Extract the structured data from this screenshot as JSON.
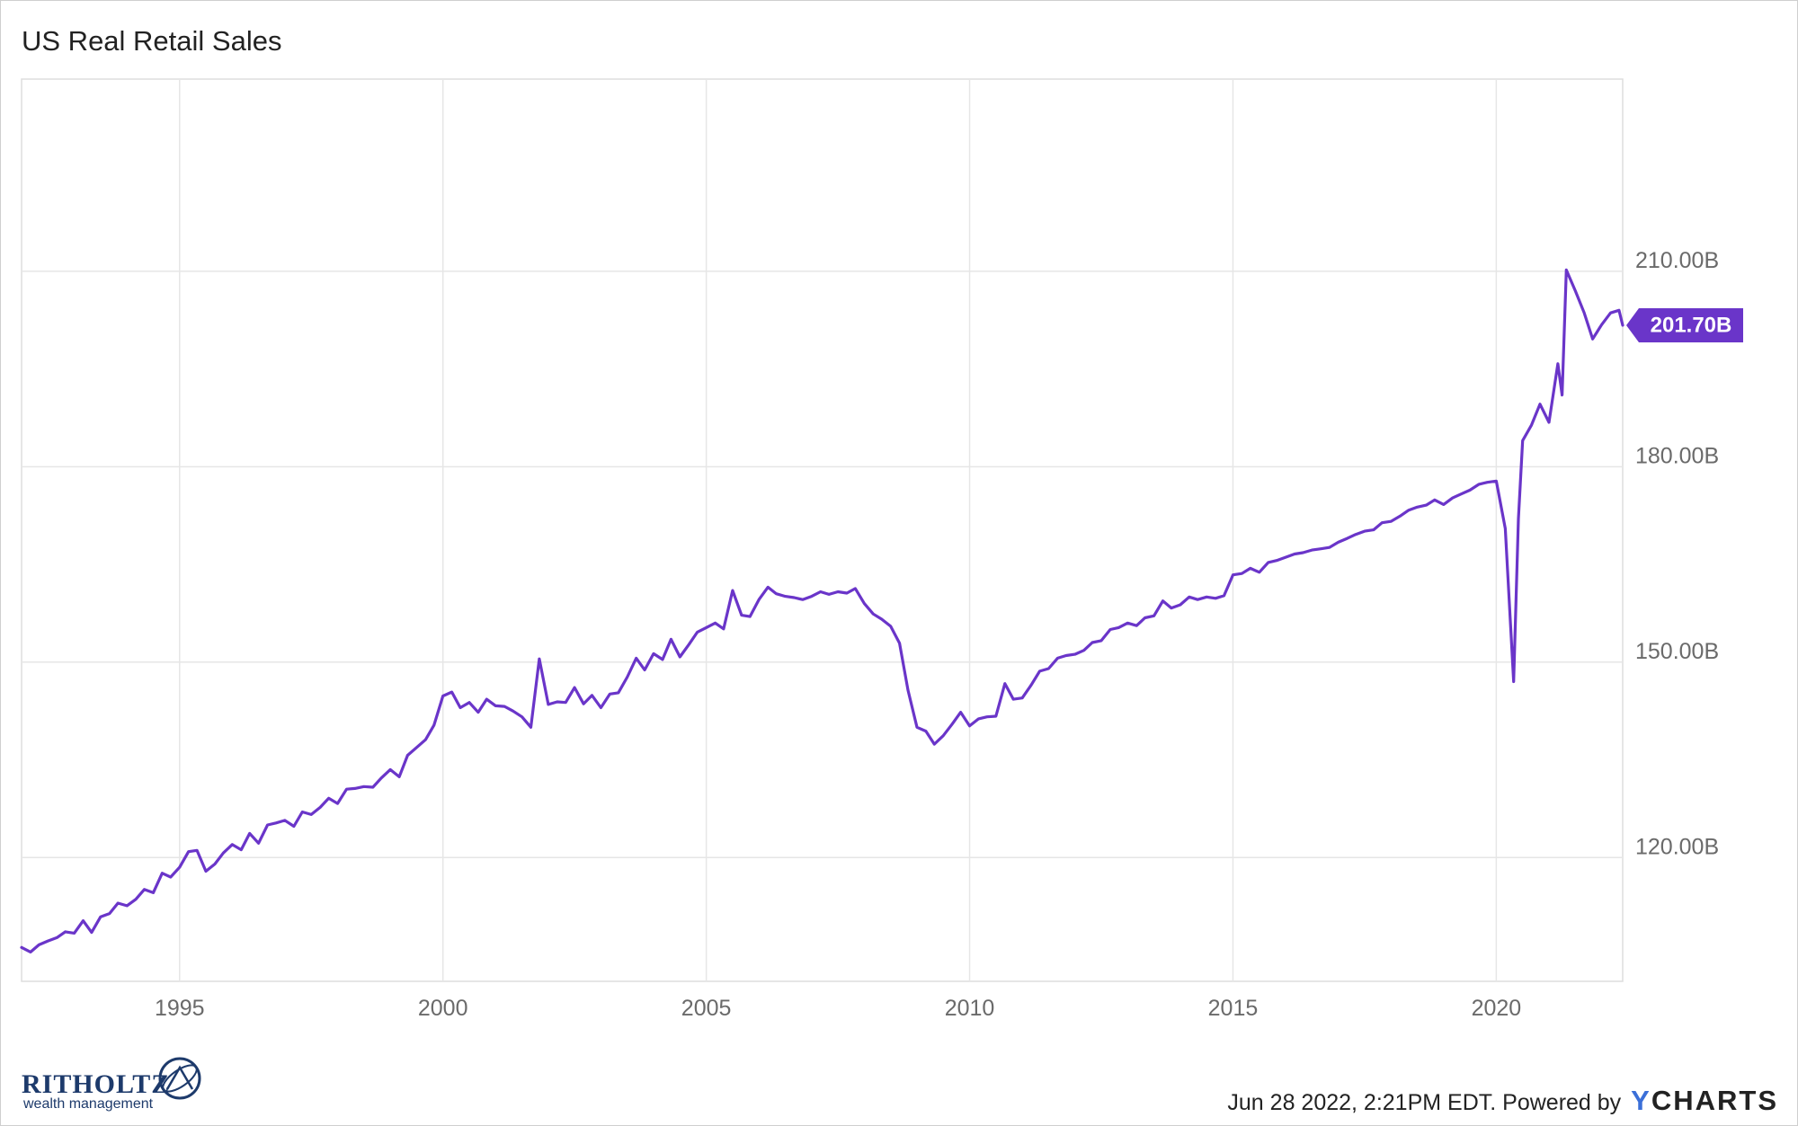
{
  "title": "US Real Retail Sales",
  "last_value_label": "201.70B",
  "footer": {
    "timestamp": "Jun 28 2022, 2:21PM EDT.",
    "powered_by": "Powered by",
    "brand_y": "Y",
    "brand_rest": "CHARTS"
  },
  "logo": {
    "name": "RITHOLTZ",
    "tagline": "wealth management"
  },
  "colors": {
    "line": "#6a35c9",
    "label_bg": "#6a35c9",
    "grid": "#e6e6e6"
  },
  "chart_data": {
    "type": "line",
    "title": "US Real Retail Sales",
    "xlabel": "",
    "ylabel": "",
    "x_ticks": [
      "1995",
      "2000",
      "2005",
      "2010",
      "2015",
      "2020"
    ],
    "y_ticks": [
      "120.00B",
      "150.00B",
      "180.00B",
      "210.00B"
    ],
    "y_tick_values": [
      120,
      150,
      180,
      210
    ],
    "xlim": [
      1992.0,
      2022.4
    ],
    "ylim": [
      101,
      239.5
    ],
    "y_unit": "B (USD)",
    "grid": true,
    "legend": "none",
    "last_value": 201.7,
    "series": [
      {
        "values": [
          [
            1992.0,
            106.2
          ],
          [
            1992.17,
            105.5
          ],
          [
            1992.33,
            106.6
          ],
          [
            1992.5,
            107.2
          ],
          [
            1992.67,
            107.7
          ],
          [
            1992.83,
            108.6
          ],
          [
            1993.0,
            108.4
          ],
          [
            1993.17,
            110.3
          ],
          [
            1993.33,
            108.5
          ],
          [
            1993.5,
            110.9
          ],
          [
            1993.67,
            111.4
          ],
          [
            1993.83,
            113.0
          ],
          [
            1994.0,
            112.6
          ],
          [
            1994.17,
            113.6
          ],
          [
            1994.33,
            115.1
          ],
          [
            1994.5,
            114.6
          ],
          [
            1994.67,
            117.6
          ],
          [
            1994.83,
            117.0
          ],
          [
            1995.0,
            118.5
          ],
          [
            1995.17,
            120.9
          ],
          [
            1995.33,
            121.1
          ],
          [
            1995.5,
            117.9
          ],
          [
            1995.67,
            119.0
          ],
          [
            1995.83,
            120.7
          ],
          [
            1996.0,
            122.0
          ],
          [
            1996.17,
            121.2
          ],
          [
            1996.33,
            123.7
          ],
          [
            1996.5,
            122.2
          ],
          [
            1996.67,
            125.0
          ],
          [
            1996.83,
            125.3
          ],
          [
            1997.0,
            125.7
          ],
          [
            1997.17,
            124.8
          ],
          [
            1997.33,
            127.0
          ],
          [
            1997.5,
            126.6
          ],
          [
            1997.67,
            127.7
          ],
          [
            1997.83,
            129.1
          ],
          [
            1998.0,
            128.3
          ],
          [
            1998.17,
            130.5
          ],
          [
            1998.33,
            130.6
          ],
          [
            1998.5,
            130.9
          ],
          [
            1998.67,
            130.8
          ],
          [
            1998.83,
            132.2
          ],
          [
            1999.0,
            133.5
          ],
          [
            1999.17,
            132.4
          ],
          [
            1999.33,
            135.7
          ],
          [
            1999.5,
            136.9
          ],
          [
            1999.67,
            138.1
          ],
          [
            1999.83,
            140.3
          ],
          [
            2000.0,
            144.8
          ],
          [
            2000.17,
            145.4
          ],
          [
            2000.33,
            143.0
          ],
          [
            2000.5,
            143.8
          ],
          [
            2000.67,
            142.3
          ],
          [
            2000.83,
            144.3
          ],
          [
            2001.0,
            143.3
          ],
          [
            2001.17,
            143.2
          ],
          [
            2001.33,
            142.5
          ],
          [
            2001.5,
            141.6
          ],
          [
            2001.67,
            140.0
          ],
          [
            2001.83,
            150.5
          ],
          [
            2002.0,
            143.5
          ],
          [
            2002.17,
            143.9
          ],
          [
            2002.33,
            143.8
          ],
          [
            2002.5,
            146.1
          ],
          [
            2002.67,
            143.6
          ],
          [
            2002.83,
            144.9
          ],
          [
            2003.0,
            143.0
          ],
          [
            2003.17,
            145.1
          ],
          [
            2003.33,
            145.3
          ],
          [
            2003.5,
            147.7
          ],
          [
            2003.67,
            150.6
          ],
          [
            2003.83,
            148.8
          ],
          [
            2004.0,
            151.3
          ],
          [
            2004.17,
            150.4
          ],
          [
            2004.33,
            153.5
          ],
          [
            2004.5,
            150.8
          ],
          [
            2004.67,
            152.7
          ],
          [
            2004.83,
            154.6
          ],
          [
            2005.0,
            155.3
          ],
          [
            2005.17,
            156.0
          ],
          [
            2005.33,
            155.1
          ],
          [
            2005.5,
            161.0
          ],
          [
            2005.67,
            157.2
          ],
          [
            2005.83,
            157.0
          ],
          [
            2006.0,
            159.6
          ],
          [
            2006.17,
            161.5
          ],
          [
            2006.33,
            160.5
          ],
          [
            2006.5,
            160.1
          ],
          [
            2006.67,
            159.9
          ],
          [
            2006.83,
            159.6
          ],
          [
            2007.0,
            160.1
          ],
          [
            2007.17,
            160.8
          ],
          [
            2007.33,
            160.4
          ],
          [
            2007.5,
            160.8
          ],
          [
            2007.67,
            160.6
          ],
          [
            2007.83,
            161.3
          ],
          [
            2008.0,
            159.0
          ],
          [
            2008.17,
            157.4
          ],
          [
            2008.33,
            156.6
          ],
          [
            2008.5,
            155.5
          ],
          [
            2008.67,
            152.9
          ],
          [
            2008.83,
            145.7
          ],
          [
            2009.0,
            140.0
          ],
          [
            2009.17,
            139.4
          ],
          [
            2009.33,
            137.4
          ],
          [
            2009.5,
            138.7
          ],
          [
            2009.67,
            140.5
          ],
          [
            2009.83,
            142.3
          ],
          [
            2010.0,
            140.2
          ],
          [
            2010.17,
            141.3
          ],
          [
            2010.33,
            141.6
          ],
          [
            2010.5,
            141.7
          ],
          [
            2010.67,
            146.7
          ],
          [
            2010.83,
            144.3
          ],
          [
            2011.0,
            144.5
          ],
          [
            2011.17,
            146.5
          ],
          [
            2011.33,
            148.6
          ],
          [
            2011.5,
            149.0
          ],
          [
            2011.67,
            150.6
          ],
          [
            2011.83,
            151.0
          ],
          [
            2012.0,
            151.2
          ],
          [
            2012.17,
            151.8
          ],
          [
            2012.33,
            153.0
          ],
          [
            2012.5,
            153.3
          ],
          [
            2012.67,
            155.0
          ],
          [
            2012.83,
            155.3
          ],
          [
            2013.0,
            156.0
          ],
          [
            2013.17,
            155.6
          ],
          [
            2013.33,
            156.8
          ],
          [
            2013.5,
            157.1
          ],
          [
            2013.67,
            159.4
          ],
          [
            2013.83,
            158.3
          ],
          [
            2014.0,
            158.8
          ],
          [
            2014.17,
            160.0
          ],
          [
            2014.33,
            159.6
          ],
          [
            2014.5,
            160.0
          ],
          [
            2014.67,
            159.8
          ],
          [
            2014.83,
            160.2
          ],
          [
            2015.0,
            163.4
          ],
          [
            2015.17,
            163.6
          ],
          [
            2015.33,
            164.4
          ],
          [
            2015.5,
            163.8
          ],
          [
            2015.67,
            165.3
          ],
          [
            2015.83,
            165.6
          ],
          [
            2016.0,
            166.1
          ],
          [
            2016.17,
            166.6
          ],
          [
            2016.33,
            166.8
          ],
          [
            2016.5,
            167.2
          ],
          [
            2016.67,
            167.4
          ],
          [
            2016.83,
            167.6
          ],
          [
            2017.0,
            168.4
          ],
          [
            2017.17,
            169.0
          ],
          [
            2017.33,
            169.6
          ],
          [
            2017.5,
            170.1
          ],
          [
            2017.67,
            170.3
          ],
          [
            2017.83,
            171.4
          ],
          [
            2018.0,
            171.6
          ],
          [
            2018.17,
            172.4
          ],
          [
            2018.33,
            173.3
          ],
          [
            2018.5,
            173.8
          ],
          [
            2018.67,
            174.1
          ],
          [
            2018.83,
            174.9
          ],
          [
            2019.0,
            174.2
          ],
          [
            2019.17,
            175.2
          ],
          [
            2019.33,
            175.8
          ],
          [
            2019.5,
            176.4
          ],
          [
            2019.67,
            177.3
          ],
          [
            2019.83,
            177.6
          ],
          [
            2020.0,
            177.8
          ],
          [
            2020.17,
            170.5
          ],
          [
            2020.33,
            147.0
          ],
          [
            2020.42,
            172.0
          ],
          [
            2020.5,
            184.0
          ],
          [
            2020.67,
            186.4
          ],
          [
            2020.83,
            189.6
          ],
          [
            2021.0,
            186.8
          ],
          [
            2021.17,
            195.8
          ],
          [
            2021.25,
            191.0
          ],
          [
            2021.33,
            210.2
          ],
          [
            2021.5,
            207.0
          ],
          [
            2021.67,
            203.6
          ],
          [
            2021.83,
            199.6
          ],
          [
            2022.0,
            201.8
          ],
          [
            2022.17,
            203.6
          ],
          [
            2022.33,
            204.0
          ],
          [
            2022.4,
            201.7
          ]
        ]
      }
    ]
  }
}
